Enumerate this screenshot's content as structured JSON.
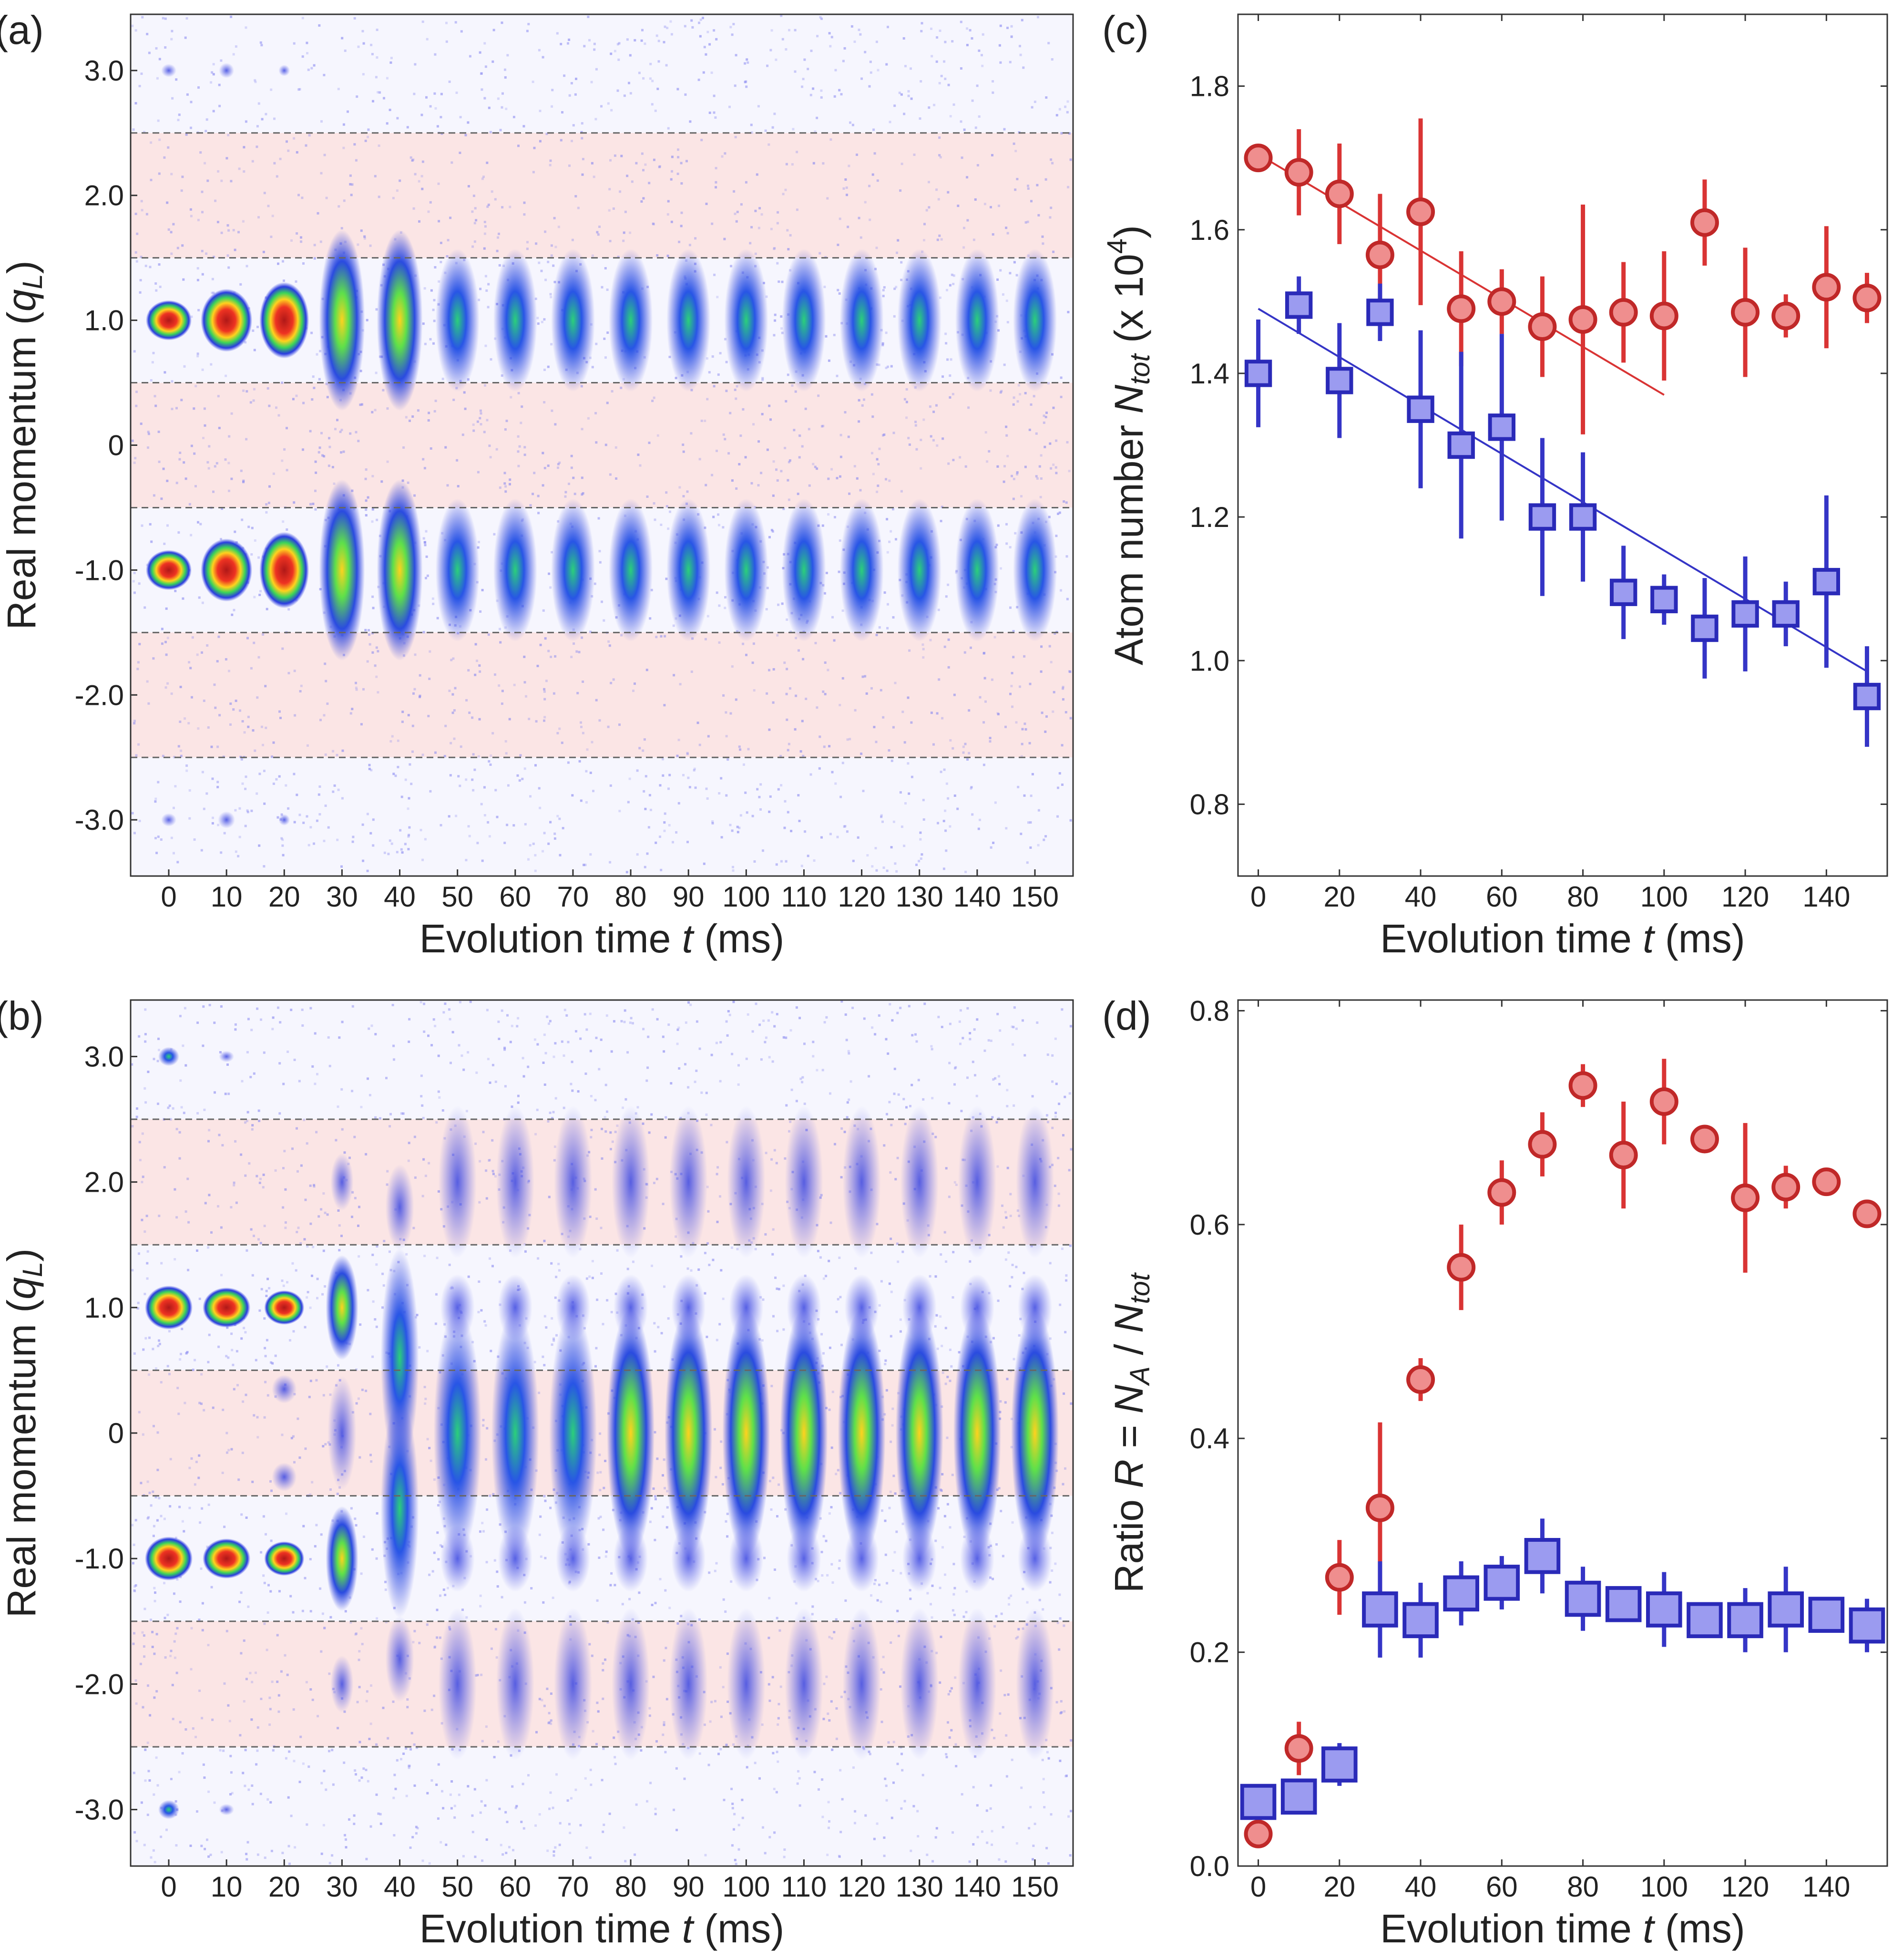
{
  "colors": {
    "red": "#d93434",
    "red_edge": "#c02828",
    "red_fill": "#ef8e8e",
    "blue": "#3535c6",
    "blue_edge": "#2a2ab8",
    "blue_fill": "#9b9bf0",
    "band": "#fbe5e5"
  },
  "chart_data": [
    {
      "panel": "(a)",
      "type": "heatmap",
      "title": "",
      "xlabel": "Evolution time t (ms)",
      "ylabel": "Real momentum (qL)",
      "xlabel_parts": {
        "pre": "Evolution time ",
        "var": "t",
        "post": " (ms)"
      },
      "ylabel_parts": {
        "pre": "Real momentum (",
        "var": "q",
        "sub": "L",
        "post": ")"
      },
      "x": [
        0,
        10,
        20,
        30,
        40,
        50,
        60,
        70,
        80,
        90,
        100,
        110,
        120,
        130,
        140,
        150
      ],
      "x_tick_labels": [
        "0",
        "10",
        "20",
        "30",
        "40",
        "50",
        "60",
        "70",
        "80",
        "90",
        "100",
        "110",
        "120",
        "130",
        "140",
        "150"
      ],
      "y_ticks": [
        3.0,
        2.0,
        1.0,
        0,
        -1.0,
        -2.0,
        -3.0
      ],
      "y_tick_labels": [
        "3.0",
        "2.0",
        "1.0",
        "0",
        "-1.0",
        "-2.0",
        "-3.0"
      ],
      "ylim": [
        -3.45,
        3.45
      ],
      "dashed_lines_y": [
        2.5,
        1.5,
        0.5,
        -0.5,
        -1.5,
        -2.5
      ],
      "shaded_bands_y": [
        [
          1.5,
          2.5
        ],
        [
          -0.5,
          0.5
        ],
        [
          -2.5,
          -1.5
        ]
      ],
      "peak_momenta": [
        1.0,
        -1.0,
        3.0,
        -3.0
      ]
    },
    {
      "panel": "(b)",
      "type": "heatmap",
      "title": "",
      "xlabel": "Evolution time t (ms)",
      "ylabel": "Real momentum (qL)",
      "xlabel_parts": {
        "pre": "Evolution time ",
        "var": "t",
        "post": " (ms)"
      },
      "ylabel_parts": {
        "pre": "Real momentum (",
        "var": "q",
        "sub": "L",
        "post": ")"
      },
      "x": [
        0,
        10,
        20,
        30,
        40,
        50,
        60,
        70,
        80,
        90,
        100,
        110,
        120,
        130,
        140,
        150
      ],
      "x_tick_labels": [
        "0",
        "10",
        "20",
        "30",
        "40",
        "50",
        "60",
        "70",
        "80",
        "90",
        "100",
        "110",
        "120",
        "130",
        "140",
        "150"
      ],
      "y_ticks": [
        3.0,
        2.0,
        1.0,
        0,
        -1.0,
        -2.0,
        -3.0
      ],
      "y_tick_labels": [
        "3.0",
        "2.0",
        "1.0",
        "0",
        "-1.0",
        "-2.0",
        "-3.0"
      ],
      "ylim": [
        -3.45,
        3.45
      ],
      "dashed_lines_y": [
        2.5,
        1.5,
        0.5,
        -0.5,
        -1.5,
        -2.5
      ],
      "shaded_bands_y": [
        [
          1.5,
          2.5
        ],
        [
          -0.5,
          0.5
        ],
        [
          -2.5,
          -1.5
        ]
      ],
      "peak_momenta": [
        1.0,
        -1.0,
        0,
        2.0,
        -2.0,
        3.0,
        -3.0
      ]
    },
    {
      "panel": "(c)",
      "type": "scatter",
      "title": "",
      "xlabel": "Evolution time t (ms)",
      "ylabel": "Atom number Ntot (x 10^4)",
      "xlabel_parts": {
        "pre": "Evolution time ",
        "var": "t",
        "post": " (ms)"
      },
      "ylabel_parts": {
        "pre": "Atom number ",
        "var": "N",
        "sub": "tot",
        "post": "  (x 10",
        "sup": "4",
        "end": ")"
      },
      "xlim": [
        -5,
        155
      ],
      "ylim": [
        0.7,
        1.9
      ],
      "x_ticks": [
        0,
        20,
        40,
        60,
        80,
        100,
        120,
        140
      ],
      "x_tick_labels": [
        "0",
        "20",
        "40",
        "60",
        "80",
        "100",
        "120",
        "140"
      ],
      "y_ticks": [
        0.8,
        1.0,
        1.2,
        1.4,
        1.6,
        1.8
      ],
      "y_tick_labels": [
        "0.8",
        "1.0",
        "1.2",
        "1.4",
        "1.6",
        "1.8"
      ],
      "series": [
        {
          "name": "red",
          "marker": "circle",
          "x": [
            0,
            10,
            20,
            30,
            40,
            50,
            60,
            70,
            80,
            90,
            100,
            110,
            120,
            130,
            140,
            150
          ],
          "y": [
            1.7,
            1.68,
            1.65,
            1.565,
            1.625,
            1.49,
            1.5,
            1.465,
            1.475,
            1.485,
            1.48,
            1.61,
            1.485,
            1.48,
            1.52,
            1.505
          ],
          "err": [
            0.01,
            0.06,
            0.07,
            0.085,
            0.13,
            0.08,
            0.045,
            0.07,
            0.16,
            0.07,
            0.09,
            0.06,
            0.09,
            0.03,
            0.085,
            0.035
          ],
          "fit": {
            "x": [
              0,
              100
            ],
            "y": [
              1.705,
              1.37
            ]
          }
        },
        {
          "name": "blue",
          "marker": "square",
          "x": [
            0,
            10,
            20,
            30,
            40,
            50,
            60,
            70,
            80,
            90,
            100,
            110,
            120,
            130,
            140,
            150
          ],
          "y": [
            1.4,
            1.495,
            1.39,
            1.485,
            1.35,
            1.3,
            1.325,
            1.2,
            1.2,
            1.095,
            1.085,
            1.045,
            1.065,
            1.065,
            1.11,
            0.95
          ],
          "err": [
            0.075,
            0.04,
            0.08,
            0.04,
            0.11,
            0.13,
            0.13,
            0.11,
            0.09,
            0.065,
            0.035,
            0.07,
            0.08,
            0.045,
            0.12,
            0.07
          ],
          "fit": {
            "x": [
              0,
              150
            ],
            "y": [
              1.49,
              0.985
            ]
          }
        }
      ]
    },
    {
      "panel": "(d)",
      "type": "scatter",
      "title": "",
      "xlabel": "Evolution time t (ms)",
      "ylabel": "Ratio R = NA / Ntot",
      "xlabel_parts": {
        "pre": "Evolution time ",
        "var": "t",
        "post": " (ms)"
      },
      "ylabel_parts": {
        "pre": "Ratio ",
        "var": "R",
        "mid": " = ",
        "var2": "N",
        "sub2": "A",
        "mid2": " / ",
        "var3": "N",
        "sub3": "tot"
      },
      "xlim": [
        -5,
        155
      ],
      "ylim": [
        0.0,
        0.81
      ],
      "x_ticks": [
        0,
        20,
        40,
        60,
        80,
        100,
        120,
        140
      ],
      "x_tick_labels": [
        "0",
        "20",
        "40",
        "60",
        "80",
        "100",
        "120",
        "140"
      ],
      "y_ticks": [
        0.0,
        0.2,
        0.4,
        0.6,
        0.8
      ],
      "y_tick_labels": [
        "0.0",
        "0.2",
        "0.4",
        "0.6",
        "0.8"
      ],
      "series": [
        {
          "name": "red",
          "marker": "circle",
          "x": [
            0,
            10,
            20,
            30,
            40,
            50,
            60,
            70,
            80,
            90,
            100,
            110,
            120,
            130,
            140,
            150
          ],
          "y": [
            0.03,
            0.11,
            0.27,
            0.335,
            0.455,
            0.56,
            0.63,
            0.675,
            0.73,
            0.665,
            0.715,
            0.68,
            0.625,
            0.635,
            0.64,
            0.61
          ],
          "err": [
            0.005,
            0.025,
            0.035,
            0.08,
            0.02,
            0.04,
            0.03,
            0.03,
            0.02,
            0.05,
            0.04,
            0.01,
            0.07,
            0.02,
            0.005,
            0.005
          ]
        },
        {
          "name": "blue",
          "marker": "square",
          "x": [
            0,
            10,
            20,
            30,
            40,
            50,
            60,
            70,
            80,
            90,
            100,
            110,
            120,
            130,
            140,
            150
          ],
          "y": [
            0.06,
            0.065,
            0.095,
            0.24,
            0.23,
            0.255,
            0.265,
            0.29,
            0.25,
            0.245,
            0.24,
            0.23,
            0.23,
            0.24,
            0.235,
            0.225
          ],
          "err": [
            0.01,
            0.015,
            0.02,
            0.045,
            0.035,
            0.03,
            0.025,
            0.035,
            0.03,
            0.01,
            0.035,
            0.01,
            0.03,
            0.04,
            0.01,
            0.025
          ]
        }
      ]
    }
  ]
}
